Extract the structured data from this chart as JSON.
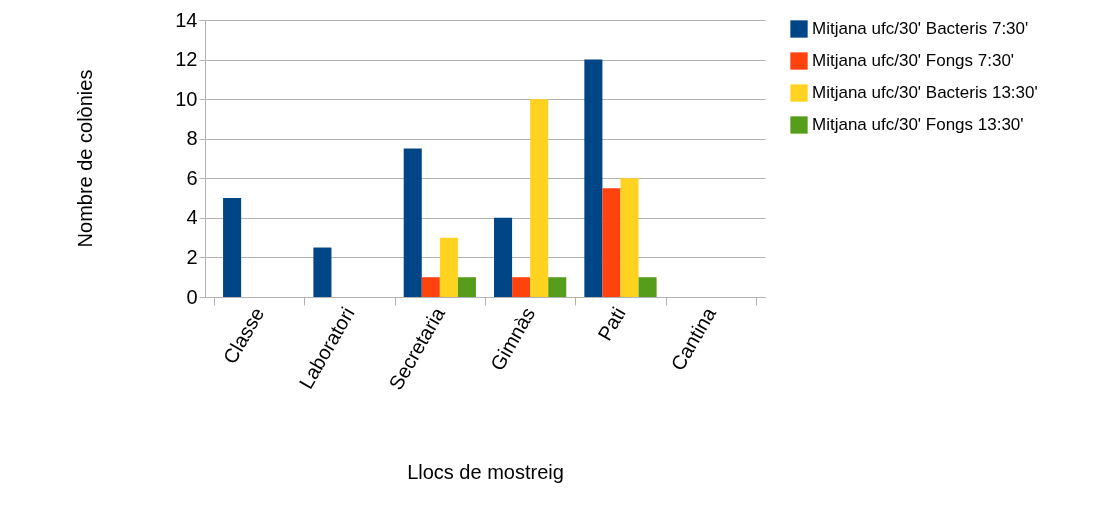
{
  "chart_data": {
    "type": "bar",
    "xlabel": "Llocs de mostreig",
    "ylabel": "Nombre de colònies",
    "categories": [
      "Classe",
      "Laboratori",
      "Secretaria",
      "Gimnàs",
      "Pati",
      "Cantina"
    ],
    "series": [
      {
        "name": "Mitjana ufc/30' Bacteris 7:30'",
        "color": "#004586",
        "values": [
          5,
          2.5,
          7.5,
          4,
          12,
          0
        ]
      },
      {
        "name": "Mitjana ufc/30' Fongs 7:30'",
        "color": "#ff420e",
        "values": [
          0,
          0,
          1,
          1,
          5.5,
          0
        ]
      },
      {
        "name": "Mitjana ufc/30' Bacteris 13:30'",
        "color": "#ffd320",
        "values": [
          0,
          0,
          3,
          10,
          6,
          0
        ]
      },
      {
        "name": "Mitjana ufc/30' Fongs 13:30'",
        "color": "#579d1c",
        "values": [
          0,
          0,
          1,
          1,
          1,
          0
        ]
      }
    ],
    "ylim": [
      0,
      14
    ],
    "yticks": [
      0,
      2,
      4,
      6,
      8,
      10,
      12,
      14
    ],
    "grid": "y",
    "legend": "right"
  }
}
